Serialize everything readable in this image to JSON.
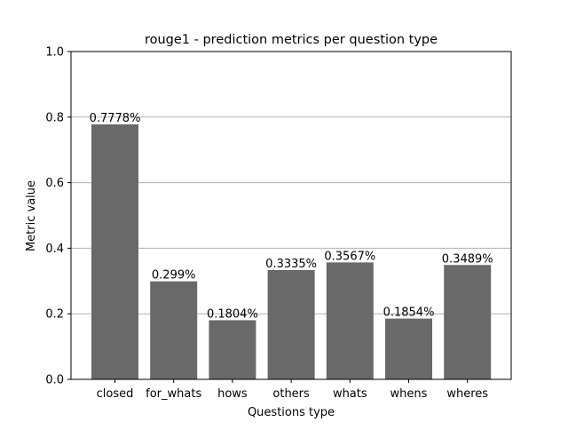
{
  "chart_data": {
    "type": "bar",
    "title": "rouge1 - prediction metrics per question type",
    "xlabel": "Questions type",
    "ylabel": "Metric value",
    "categories": [
      "closed",
      "for_whats",
      "hows",
      "others",
      "whats",
      "whens",
      "wheres"
    ],
    "values": [
      0.7778,
      0.299,
      0.1804,
      0.3335,
      0.3567,
      0.1854,
      0.3489
    ],
    "value_labels": [
      "0.7778%",
      "0.299%",
      "0.1804%",
      "0.3335%",
      "0.3567%",
      "0.1854%",
      "0.3489%"
    ],
    "ylim": [
      0,
      1.0
    ],
    "yticks": [
      0.0,
      0.2,
      0.4,
      0.6,
      0.8,
      1.0
    ],
    "ytick_labels": [
      "0.0",
      "0.2",
      "0.4",
      "0.6",
      "0.8",
      "1.0"
    ],
    "grid": "y",
    "legend": "none",
    "colors": {
      "bar": "#696969",
      "grid": "#b0b0b0",
      "axes": "#000000",
      "background": "#ffffff"
    }
  }
}
